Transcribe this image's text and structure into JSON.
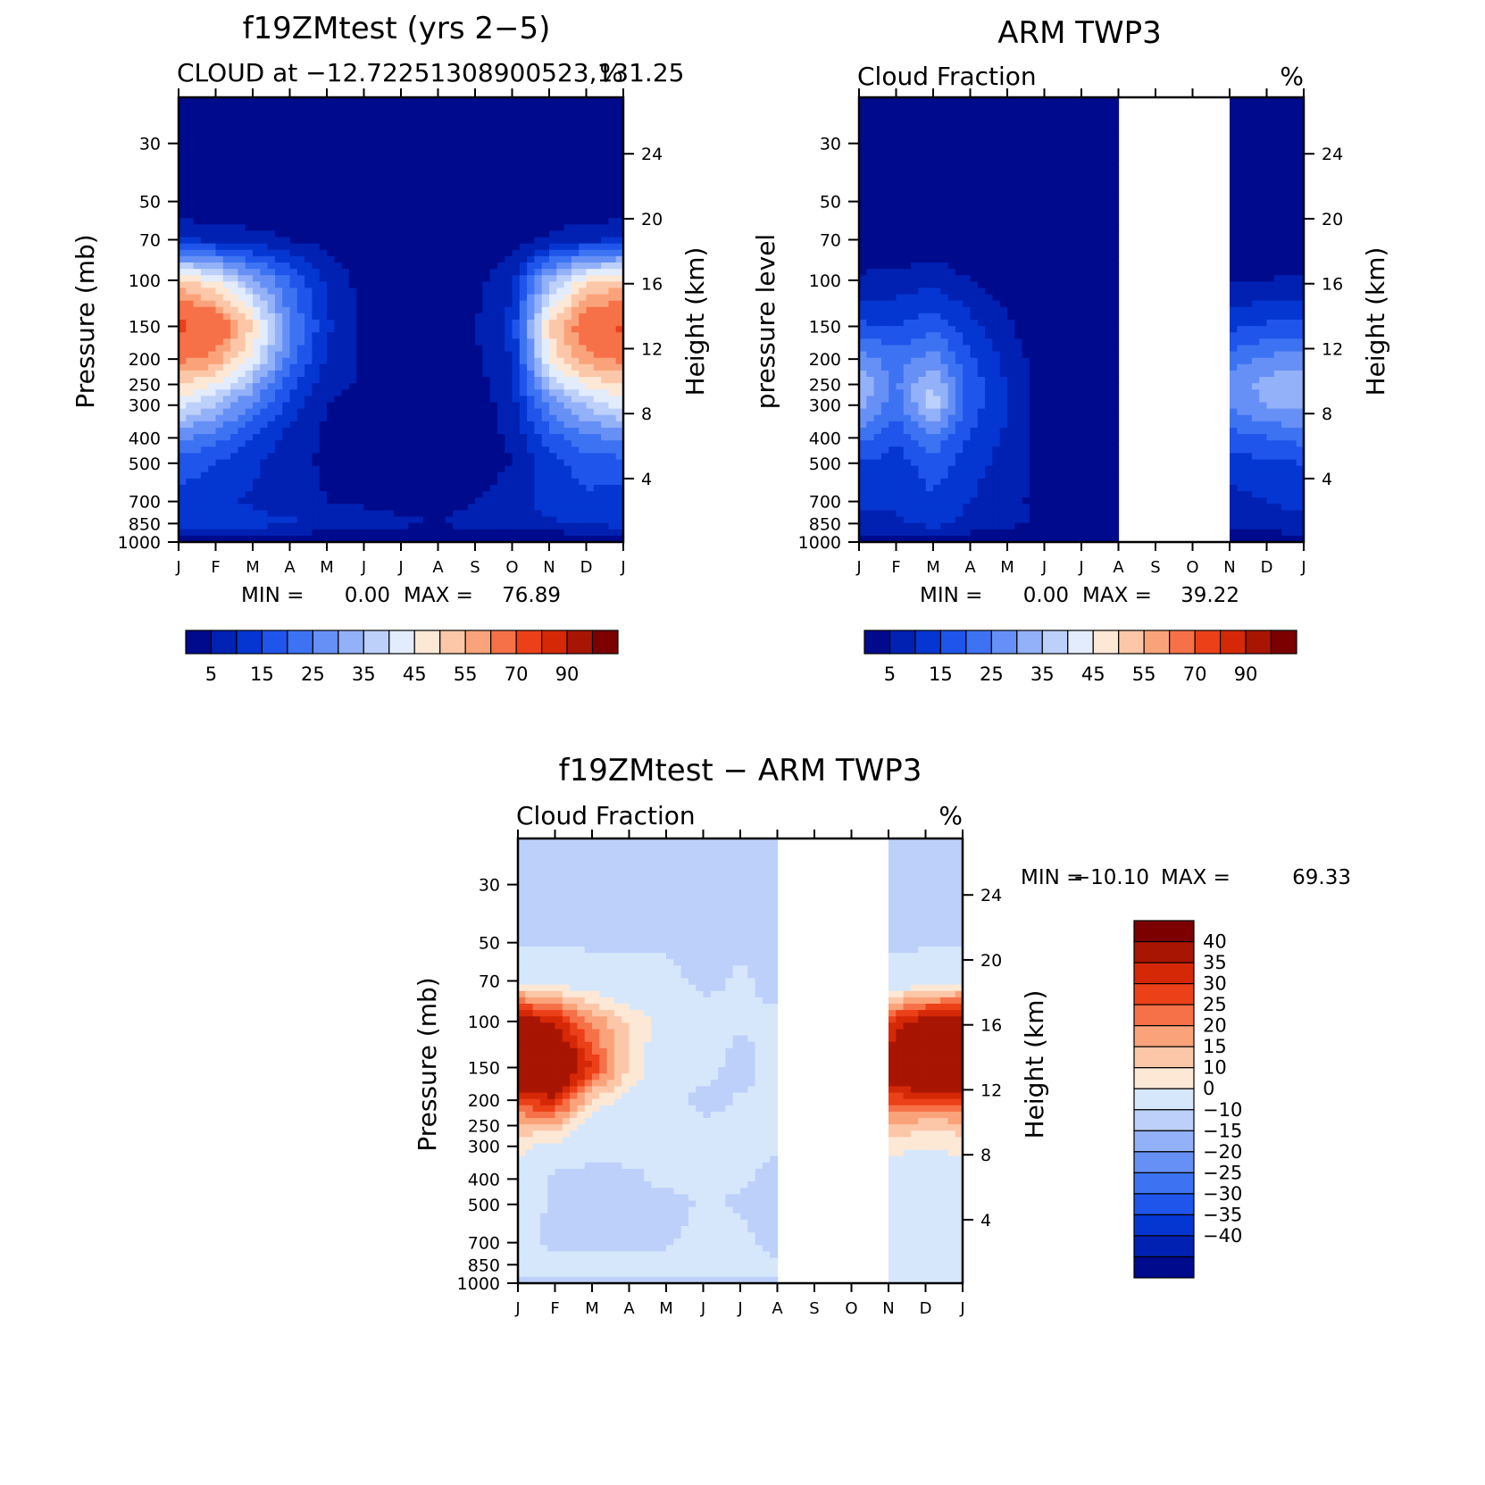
{
  "chart_data": [
    {
      "id": "model",
      "type": "heatmap",
      "title": "f19ZMtest (yrs 2−5)",
      "left_subtitle": "CLOUD at −12.72251308900523,131.25",
      "right_subtitle": "%",
      "ylabel": "Pressure (mb)",
      "ylabel_right": "Height (km)",
      "x_ticks": [
        "J",
        "F",
        "M",
        "A",
        "M",
        "J",
        "J",
        "A",
        "S",
        "O",
        "N",
        "D",
        "J"
      ],
      "y_ticks": [
        30,
        50,
        70,
        100,
        150,
        200,
        250,
        300,
        400,
        500,
        700,
        850,
        1000
      ],
      "y_ticks_right": [
        24,
        20,
        16,
        12,
        8,
        4
      ],
      "ylim": [
        1000,
        20
      ],
      "y_scale": "log",
      "missing_months": [],
      "min_label": "MIN =",
      "min_value": "0.00",
      "max_label": "MAX =",
      "max_value": "76.89",
      "color_levels": [
        5,
        10,
        15,
        20,
        25,
        30,
        35,
        40,
        45,
        50,
        55,
        60,
        70,
        80,
        90
      ],
      "colorbar_labels": [
        "5",
        "15",
        "25",
        "35",
        "45",
        "55",
        "70",
        "90"
      ],
      "colors": [
        "#000a8c",
        "#0021b2",
        "#0536d2",
        "#1f55ea",
        "#3d73f2",
        "#6690f5",
        "#93b1f8",
        "#bcd0fa",
        "#e2ecfd",
        "#fde8d6",
        "#fcc7a8",
        "#faa37a",
        "#f77148",
        "#ec4018",
        "#d52806",
        "#a81502",
        "#7d0000"
      ],
      "z_grid": {
        "pressure": [
          1000,
          850,
          700,
          500,
          400,
          300,
          250,
          200,
          150,
          100,
          70,
          50,
          30
        ],
        "month": [
          "J",
          "F",
          "M",
          "A",
          "M",
          "J",
          "J",
          "A",
          "S",
          "O",
          "N",
          "D",
          "J"
        ],
        "values": [
          [
            0,
            0,
            0,
            0,
            0,
            0,
            0,
            0,
            0,
            0,
            0,
            0,
            0
          ],
          [
            12,
            13,
            12,
            11,
            9,
            8,
            6,
            5,
            7,
            8,
            9,
            11,
            12
          ],
          [
            13,
            12,
            9,
            7,
            5,
            4,
            3,
            3,
            5,
            8,
            12,
            14,
            13
          ],
          [
            18,
            15,
            11,
            7,
            4,
            2,
            1,
            1,
            2,
            5,
            13,
            17,
            18
          ],
          [
            26,
            22,
            15,
            8,
            4,
            2,
            1,
            1,
            2,
            6,
            18,
            24,
            26
          ],
          [
            42,
            35,
            24,
            13,
            5,
            3,
            1,
            1,
            2,
            8,
            26,
            36,
            42
          ],
          [
            50,
            45,
            32,
            17,
            7,
            4,
            1,
            1,
            3,
            9,
            36,
            46,
            50
          ],
          [
            62,
            58,
            43,
            23,
            9,
            4,
            1,
            1,
            4,
            10,
            46,
            58,
            62
          ],
          [
            72,
            68,
            50,
            26,
            11,
            4,
            1,
            1,
            5,
            12,
            50,
            66,
            72
          ],
          [
            52,
            44,
            32,
            20,
            9,
            3,
            1,
            1,
            3,
            9,
            34,
            48,
            52
          ],
          [
            10,
            9,
            7,
            5,
            3,
            1,
            0,
            0,
            1,
            2,
            6,
            9,
            10
          ],
          [
            0,
            0,
            0,
            0,
            0,
            0,
            0,
            0,
            0,
            0,
            0,
            0,
            0
          ],
          [
            0,
            0,
            0,
            0,
            0,
            0,
            0,
            0,
            0,
            0,
            0,
            0,
            0
          ]
        ]
      }
    },
    {
      "id": "obs",
      "type": "heatmap",
      "title": "ARM TWP3",
      "left_subtitle": "Cloud Fraction",
      "right_subtitle": "%",
      "ylabel": "pressure level",
      "ylabel_right": "Height (km)",
      "x_ticks": [
        "J",
        "F",
        "M",
        "A",
        "M",
        "J",
        "J",
        "A",
        "S",
        "O",
        "N",
        "D",
        "J"
      ],
      "y_ticks": [
        30,
        50,
        70,
        100,
        150,
        200,
        250,
        300,
        400,
        500,
        700,
        850,
        1000
      ],
      "y_ticks_right": [
        24,
        20,
        16,
        12,
        8,
        4
      ],
      "ylim": [
        1000,
        20
      ],
      "y_scale": "log",
      "missing_months": [
        "S",
        "O"
      ],
      "min_label": "MIN =",
      "min_value": "0.00",
      "max_label": "MAX =",
      "max_value": "39.22",
      "color_levels": [
        5,
        10,
        15,
        20,
        25,
        30,
        35,
        40,
        45,
        50,
        55,
        60,
        70,
        80,
        90
      ],
      "colorbar_labels": [
        "5",
        "15",
        "25",
        "35",
        "45",
        "55",
        "70",
        "90"
      ],
      "colors": [
        "#000a8c",
        "#0021b2",
        "#0536d2",
        "#1f55ea",
        "#3d73f2",
        "#6690f5",
        "#93b1f8",
        "#bcd0fa",
        "#e2ecfd",
        "#fde8d6",
        "#fcc7a8",
        "#faa37a",
        "#f77148",
        "#ec4018",
        "#d52806",
        "#a81502",
        "#7d0000"
      ],
      "z_grid": {
        "pressure": [
          1000,
          850,
          700,
          500,
          400,
          300,
          250,
          200,
          150,
          100,
          70,
          50,
          30
        ],
        "month": [
          "J",
          "F",
          "M",
          "A",
          "M",
          "J",
          "J",
          "A",
          "S",
          "O",
          "N",
          "D",
          "J"
        ],
        "values": [
          [
            3,
            3,
            3,
            2,
            2,
            1,
            1,
            1,
            null,
            null,
            2,
            2,
            3
          ],
          [
            8,
            9,
            12,
            8,
            6,
            4,
            2,
            1,
            null,
            null,
            6,
            7,
            8
          ],
          [
            12,
            11,
            14,
            10,
            7,
            3,
            1,
            1,
            null,
            null,
            8,
            10,
            12
          ],
          [
            15,
            12,
            18,
            12,
            8,
            2,
            1,
            1,
            null,
            null,
            12,
            14,
            15
          ],
          [
            22,
            16,
            24,
            14,
            9,
            2,
            1,
            1,
            null,
            null,
            18,
            20,
            22
          ],
          [
            32,
            22,
            38,
            18,
            10,
            2,
            1,
            1,
            null,
            null,
            26,
            30,
            32
          ],
          [
            34,
            24,
            36,
            18,
            10,
            2,
            1,
            1,
            null,
            null,
            28,
            32,
            34
          ],
          [
            28,
            22,
            28,
            16,
            8,
            2,
            1,
            1,
            null,
            null,
            22,
            26,
            28
          ],
          [
            16,
            15,
            18,
            12,
            6,
            1,
            1,
            1,
            null,
            null,
            14,
            16,
            16
          ],
          [
            6,
            7,
            9,
            5,
            2,
            0,
            0,
            0,
            null,
            null,
            4,
            5,
            6
          ],
          [
            0,
            0,
            1,
            0,
            0,
            0,
            0,
            0,
            null,
            null,
            0,
            0,
            0
          ],
          [
            0,
            0,
            0,
            0,
            0,
            0,
            0,
            0,
            null,
            null,
            0,
            0,
            0
          ],
          [
            0,
            0,
            0,
            0,
            0,
            0,
            0,
            0,
            null,
            null,
            0,
            0,
            0
          ]
        ]
      }
    },
    {
      "id": "diff",
      "type": "heatmap",
      "title": "f19ZMtest − ARM TWP3",
      "left_subtitle": "Cloud Fraction",
      "right_subtitle": "%",
      "ylabel": "Pressure (mb)",
      "ylabel_right": "Height (km)",
      "x_ticks": [
        "J",
        "F",
        "M",
        "A",
        "M",
        "J",
        "J",
        "A",
        "S",
        "O",
        "N",
        "D",
        "J"
      ],
      "y_ticks": [
        30,
        50,
        70,
        100,
        150,
        200,
        250,
        300,
        400,
        500,
        700,
        850,
        1000
      ],
      "y_ticks_right": [
        24,
        20,
        16,
        12,
        8,
        4
      ],
      "ylim": [
        1000,
        20
      ],
      "y_scale": "log",
      "missing_months": [
        "S",
        "O"
      ],
      "min_label": "MIN =",
      "min_value": "−10.10",
      "max_label": "MAX =",
      "max_value": "69.33",
      "color_levels": [
        -40,
        -35,
        -30,
        -25,
        -20,
        -15,
        -10,
        0,
        10,
        15,
        20,
        25,
        30,
        35,
        40
      ],
      "colorbar_labels": [
        "40",
        "35",
        "30",
        "25",
        "20",
        "15",
        "10",
        "0",
        "−10",
        "−15",
        "−20",
        "−25",
        "−30",
        "−35",
        "−40"
      ],
      "colors": [
        "#000a8c",
        "#0021b2",
        "#0536d2",
        "#1f55ea",
        "#3d73f2",
        "#6690f5",
        "#93b1f8",
        "#bcd0fa",
        "#d6e7fb",
        "#fde8d6",
        "#fcc7a8",
        "#faa37a",
        "#f77148",
        "#ec4018",
        "#d52806",
        "#a81502",
        "#7d0000"
      ],
      "z_grid": {
        "pressure": [
          1000,
          850,
          700,
          500,
          400,
          300,
          250,
          200,
          150,
          100,
          70,
          50,
          30
        ],
        "month": [
          "J",
          "F",
          "M",
          "A",
          "M",
          "J",
          "J",
          "A",
          "S",
          "O",
          "N",
          "D",
          "J"
        ],
        "values": [
          [
            -1,
            -1,
            -1,
            -1,
            -1,
            -1,
            -1,
            -1,
            null,
            null,
            1,
            1,
            1
          ],
          [
            4,
            3,
            3,
            4,
            2,
            5,
            3,
            2,
            null,
            null,
            3,
            4,
            4
          ],
          [
            3,
            -2,
            -3,
            -2,
            -1,
            3,
            2,
            -3,
            null,
            null,
            4,
            4,
            3
          ],
          [
            5,
            -2,
            -3,
            -1,
            -3,
            1,
            -1,
            -2,
            null,
            null,
            3,
            3,
            5
          ],
          [
            6,
            -2,
            -4,
            -2,
            2,
            1,
            1,
            -2,
            null,
            null,
            5,
            6,
            6
          ],
          [
            12,
            8,
            5,
            3,
            2,
            2,
            1,
            1,
            null,
            null,
            12,
            10,
            12
          ],
          [
            18,
            18,
            6,
            4,
            3,
            2,
            1,
            1,
            null,
            null,
            20,
            16,
            18
          ],
          [
            34,
            38,
            14,
            8,
            4,
            -3,
            1,
            2,
            null,
            null,
            32,
            34,
            34
          ],
          [
            58,
            56,
            34,
            14,
            5,
            3,
            -3,
            3,
            null,
            null,
            46,
            60,
            58
          ],
          [
            46,
            38,
            24,
            14,
            7,
            3,
            1,
            1,
            null,
            null,
            34,
            44,
            46
          ],
          [
            8,
            6,
            4,
            3,
            2,
            -2,
            1,
            -2,
            null,
            null,
            2,
            5,
            8
          ],
          [
            -1,
            -1,
            -1,
            -1,
            -1,
            -1,
            -1,
            -1,
            null,
            null,
            -1,
            -1,
            -1
          ],
          [
            -1,
            -1,
            -1,
            -1,
            -1,
            -1,
            -1,
            -1,
            null,
            null,
            -1,
            -1,
            -1
          ]
        ]
      }
    }
  ]
}
